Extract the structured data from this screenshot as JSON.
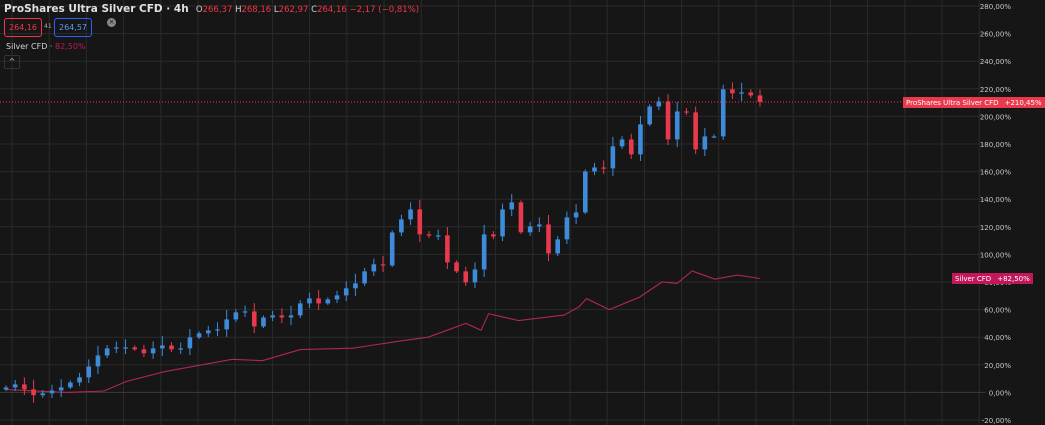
{
  "header": {
    "title": "ProShares Ultra Silver CFD · 4h",
    "open_label": "O",
    "open": "266,37",
    "high_label": "H",
    "high": "268,16",
    "low_label": "L",
    "low": "262,97",
    "close_label": "C",
    "close": "264,16",
    "change": "−2,17 (−0,81%)",
    "sell_price": "264,16",
    "spread": "41",
    "buy_price": "264,57",
    "close_icon": "close-circle-icon"
  },
  "compare": {
    "name": "Silver CFD ·",
    "value": "82,50%",
    "collapse_icon": "chevron-up-icon"
  },
  "tags": {
    "main_name": "ProShares Ultra Silver CFD",
    "main_value": "+210,45%",
    "silver_name": "Silver CFD",
    "silver_value": "+82,50%"
  },
  "colors": {
    "up": "#3d8bd9",
    "down": "#e8394d",
    "silver_line": "#b0284f",
    "background": "#161616",
    "grid": "#2a2a2a",
    "price_line": "#e8394d"
  },
  "chart_data": {
    "type": "candlestick",
    "yaxis": {
      "unit": "%",
      "ylim": [
        -20,
        280
      ],
      "ticks": [
        "280,00%",
        "260,00%",
        "240,00%",
        "220,00%",
        "200,00%",
        "180,00%",
        "160,00%",
        "140,00%",
        "120,00%",
        "100,00%",
        "80,00%",
        "60,00%",
        "40,00%",
        "20,00%",
        "0,00%",
        "-20,00%"
      ]
    },
    "grid": true,
    "last_price_line": 210.45,
    "main_series": {
      "name": "ProShares Ultra Silver CFD",
      "closes": [
        3.6,
        5.8,
        2.2,
        -2,
        -0.7,
        1.4,
        3.6,
        7.2,
        10.9,
        18.8,
        26.8,
        31.9,
        32.6,
        32.6,
        31.2,
        28.3,
        31.9,
        34,
        31.2,
        31.9,
        39.9,
        42.8,
        44.9,
        45.7,
        52.9,
        58,
        58.7,
        47.8,
        54.3,
        55.8,
        54.3,
        55.8,
        64.5,
        68.1,
        64.5,
        67.4,
        70.3,
        75.4,
        79,
        87.7,
        92.8,
        92,
        115.9,
        125.4,
        132.6,
        114.5,
        113.8,
        113.8,
        94.2,
        87.7,
        79.7,
        89.1,
        114.5,
        113,
        132.6,
        137.7,
        116,
        120.3,
        121.7,
        100.7,
        110.9,
        126.8,
        130.4,
        160.1,
        163,
        162.3,
        178.3,
        183.3,
        172.5,
        194.2,
        207.2,
        210.9,
        183.3,
        203.6,
        202.9,
        176.1,
        185.5,
        185.5,
        219.6,
        216.7,
        217.4,
        215.2,
        210.45
      ]
    },
    "comparison_series": {
      "name": "Silver CFD",
      "x_fraction": [
        0,
        0.08,
        0.13,
        0.16,
        0.21,
        0.26,
        0.3,
        0.34,
        0.39,
        0.46,
        0.52,
        0.56,
        0.61,
        0.63,
        0.64,
        0.68,
        0.74,
        0.76,
        0.77,
        0.8,
        0.84,
        0.87,
        0.89,
        0.91,
        0.92,
        0.94,
        0.97,
        1
      ],
      "values": [
        2,
        0,
        1,
        8,
        15,
        20,
        24,
        23,
        31,
        32,
        37,
        40,
        50,
        45,
        57,
        52,
        56,
        62,
        68,
        60,
        69,
        80,
        79,
        88,
        86,
        82,
        85,
        82.5
      ]
    }
  }
}
